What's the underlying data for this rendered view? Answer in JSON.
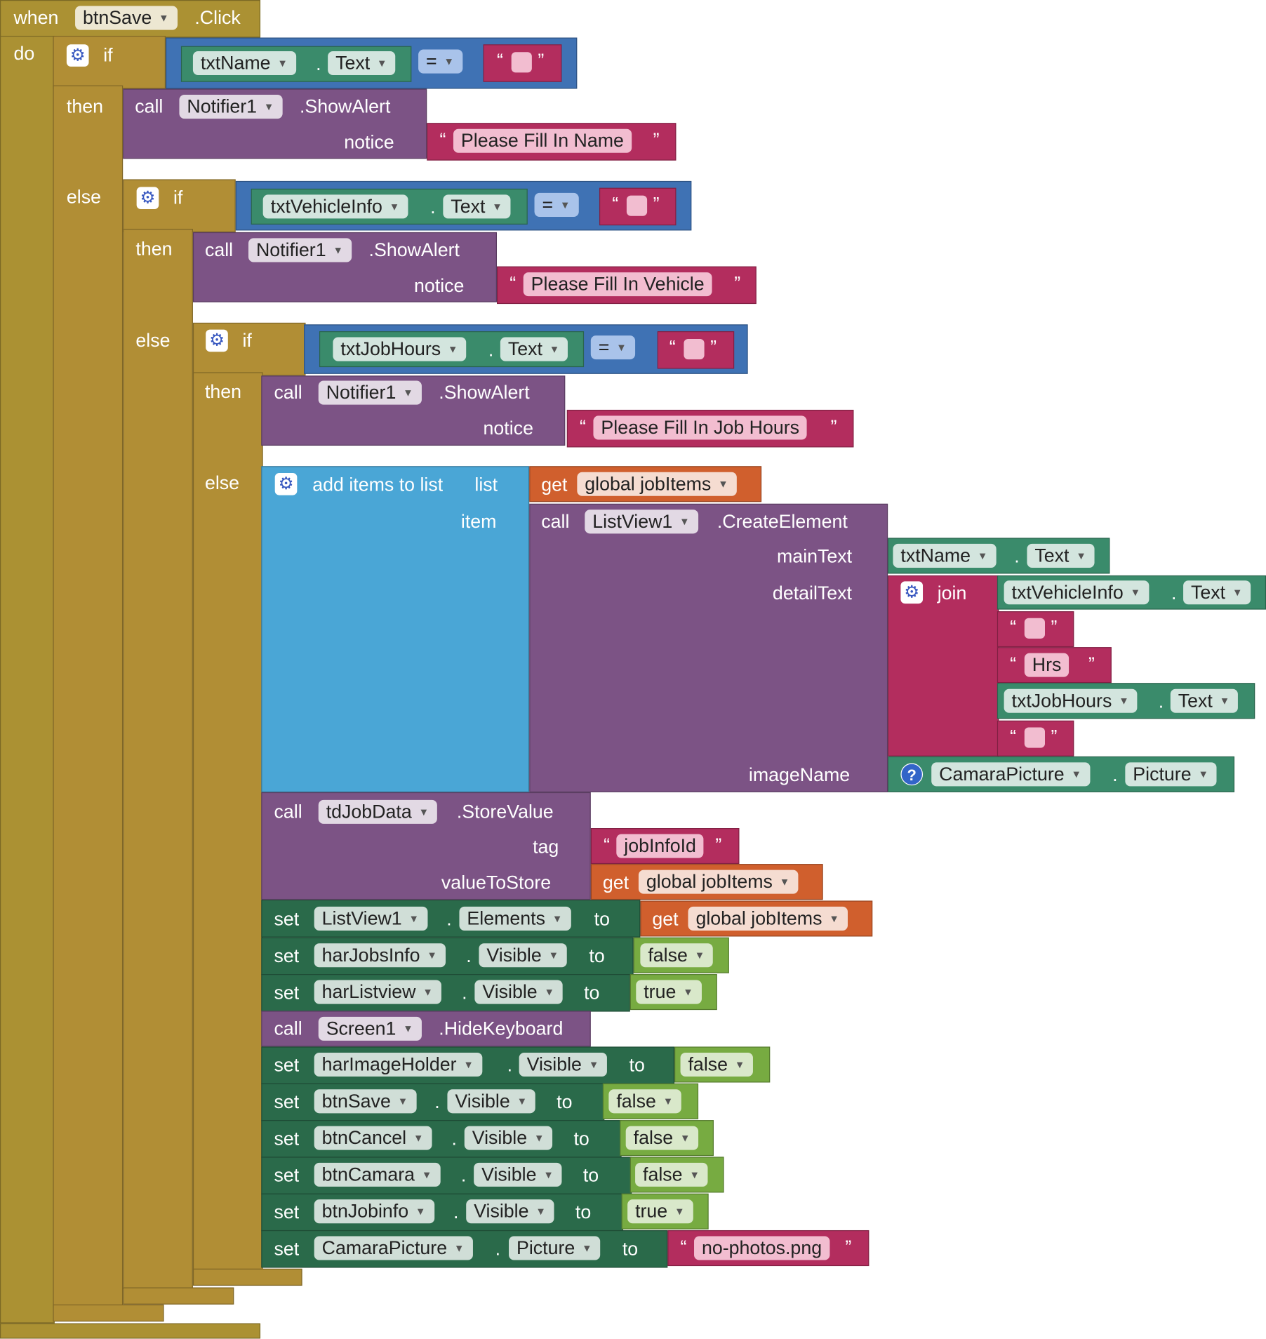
{
  "kw": {
    "when": "when",
    "do": "do",
    "if": "if",
    "then": "then",
    "else": "else",
    "call": "call",
    "set": "set",
    "to": "to",
    "get": "get",
    "dot": ".",
    "notice": "notice",
    "equals": "=",
    "lquote": "“",
    "rquote": "”",
    "join": "join",
    "item": "item",
    "list": "list",
    "add_items": "add items to list",
    "main_text": "mainText",
    "detail_text": "detailText",
    "image_name": "imageName",
    "tag": "tag",
    "value_to_store": "valueToStore"
  },
  "event": {
    "component": "btnSave",
    "method": ".Click"
  },
  "if1": {
    "component": "txtName",
    "property": "Text",
    "alert_component": "Notifier1",
    "alert_method": ".ShowAlert",
    "message": "Please Fill In Name"
  },
  "if2": {
    "component": "txtVehicleInfo",
    "property": "Text",
    "alert_component": "Notifier1",
    "alert_method": ".ShowAlert",
    "message": "Please Fill In Vehicle"
  },
  "if3": {
    "component": "txtJobHours",
    "property": "Text",
    "alert_component": "Notifier1",
    "alert_method": ".ShowAlert",
    "message": "Please Fill In Job Hours"
  },
  "add_list": {
    "variable": "global jobItems",
    "list_component": "ListView1",
    "list_method": ".CreateElement",
    "main_component": "txtName",
    "main_property": "Text",
    "join_component1": "txtVehicleInfo",
    "join_property1": "Text",
    "join_hrs": "Hrs",
    "join_component2": "txtJobHours",
    "join_property2": "Text",
    "image_component": "CamaraPicture",
    "image_property": "Picture"
  },
  "store": {
    "component": "tdJobData",
    "method": ".StoreValue",
    "tag": "jobInfoId",
    "variable": "global jobItems"
  },
  "sets": {
    "s1": {
      "component": "ListView1",
      "property": "Elements",
      "variable": "global jobItems"
    },
    "s2": {
      "component": "harJobsInfo",
      "property": "Visible",
      "value": "false"
    },
    "s3": {
      "component": "harListview",
      "property": "Visible",
      "value": "true"
    },
    "hide": {
      "component": "Screen1",
      "method": ".HideKeyboard"
    },
    "s4": {
      "component": "harImageHolder",
      "property": "Visible",
      "value": "false"
    },
    "s5": {
      "component": "btnSave",
      "property": "Visible",
      "value": "false"
    },
    "s6": {
      "component": "btnCancel",
      "property": "Visible",
      "value": "false"
    },
    "s7": {
      "component": "btnCamara",
      "property": "Visible",
      "value": "false"
    },
    "s8": {
      "component": "btnJobinfo",
      "property": "Visible",
      "value": "true"
    },
    "s9": {
      "component": "CamaraPicture",
      "property": "Picture",
      "value": "no-photos.png"
    }
  }
}
